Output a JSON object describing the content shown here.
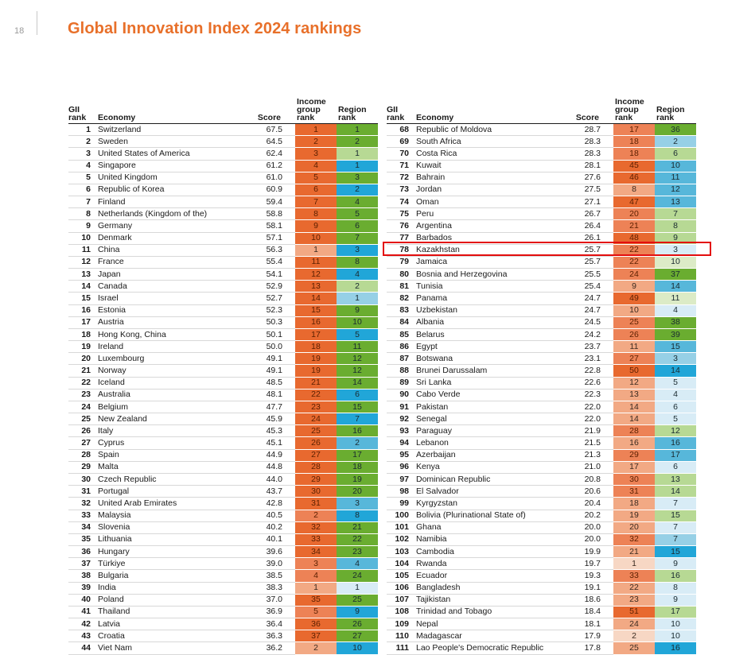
{
  "page_number": "18",
  "title": "Global Innovation Index 2024 rankings",
  "headers": {
    "gii": [
      "GII",
      "rank"
    ],
    "economy": "Economy",
    "score": "Score",
    "income": [
      "Income",
      "group",
      "rank"
    ],
    "region": [
      "Region",
      "rank"
    ]
  },
  "colors": {
    "income": [
      "#f7d7c4",
      "#f2a984",
      "#ed8256",
      "#e8692f"
    ],
    "region": [
      "#d8ecf6",
      "#96d0e6",
      "#57b7da",
      "#21a6d8",
      "#dcebc6",
      "#b7d994",
      "#8fc25c",
      "#6aad30"
    ]
  },
  "left_rows": [
    {
      "rank": "1",
      "economy": "Switzerland",
      "score": "67.5",
      "income": "1",
      "region": "1",
      "ib": 3,
      "rb": 7
    },
    {
      "rank": "2",
      "economy": "Sweden",
      "score": "64.5",
      "income": "2",
      "region": "2",
      "ib": 3,
      "rb": 7
    },
    {
      "rank": "3",
      "economy": "United States of America",
      "score": "62.4",
      "income": "3",
      "region": "1",
      "ib": 3,
      "rb": 5
    },
    {
      "rank": "4",
      "economy": "Singapore",
      "score": "61.2",
      "income": "4",
      "region": "1",
      "ib": 3,
      "rb": 3
    },
    {
      "rank": "5",
      "economy": "United Kingdom",
      "score": "61.0",
      "income": "5",
      "region": "3",
      "ib": 3,
      "rb": 7
    },
    {
      "rank": "6",
      "economy": "Republic of Korea",
      "score": "60.9",
      "income": "6",
      "region": "2",
      "ib": 3,
      "rb": 3
    },
    {
      "rank": "7",
      "economy": "Finland",
      "score": "59.4",
      "income": "7",
      "region": "4",
      "ib": 3,
      "rb": 7
    },
    {
      "rank": "8",
      "economy": "Netherlands (Kingdom of the)",
      "score": "58.8",
      "income": "8",
      "region": "5",
      "ib": 3,
      "rb": 7
    },
    {
      "rank": "9",
      "economy": "Germany",
      "score": "58.1",
      "income": "9",
      "region": "6",
      "ib": 3,
      "rb": 7
    },
    {
      "rank": "10",
      "economy": "Denmark",
      "score": "57.1",
      "income": "10",
      "region": "7",
      "ib": 3,
      "rb": 7
    },
    {
      "rank": "11",
      "economy": "China",
      "score": "56.3",
      "income": "1",
      "region": "3",
      "ib": 1,
      "rb": 3
    },
    {
      "rank": "12",
      "economy": "France",
      "score": "55.4",
      "income": "11",
      "region": "8",
      "ib": 3,
      "rb": 7
    },
    {
      "rank": "13",
      "economy": "Japan",
      "score": "54.1",
      "income": "12",
      "region": "4",
      "ib": 3,
      "rb": 3
    },
    {
      "rank": "14",
      "economy": "Canada",
      "score": "52.9",
      "income": "13",
      "region": "2",
      "ib": 3,
      "rb": 5
    },
    {
      "rank": "15",
      "economy": "Israel",
      "score": "52.7",
      "income": "14",
      "region": "1",
      "ib": 3,
      "rb": 1
    },
    {
      "rank": "16",
      "economy": "Estonia",
      "score": "52.3",
      "income": "15",
      "region": "9",
      "ib": 3,
      "rb": 7
    },
    {
      "rank": "17",
      "economy": "Austria",
      "score": "50.3",
      "income": "16",
      "region": "10",
      "ib": 3,
      "rb": 7
    },
    {
      "rank": "18",
      "economy": "Hong Kong, China",
      "score": "50.1",
      "income": "17",
      "region": "5",
      "ib": 3,
      "rb": 3
    },
    {
      "rank": "19",
      "economy": "Ireland",
      "score": "50.0",
      "income": "18",
      "region": "11",
      "ib": 3,
      "rb": 7
    },
    {
      "rank": "20",
      "economy": "Luxembourg",
      "score": "49.1",
      "income": "19",
      "region": "12",
      "ib": 3,
      "rb": 7
    },
    {
      "rank": "21",
      "economy": "Norway",
      "score": "49.1",
      "income": "19",
      "region": "12",
      "ib": 3,
      "rb": 7
    },
    {
      "rank": "22",
      "economy": "Iceland",
      "score": "48.5",
      "income": "21",
      "region": "14",
      "ib": 3,
      "rb": 7
    },
    {
      "rank": "23",
      "economy": "Australia",
      "score": "48.1",
      "income": "22",
      "region": "6",
      "ib": 3,
      "rb": 3
    },
    {
      "rank": "24",
      "economy": "Belgium",
      "score": "47.7",
      "income": "23",
      "region": "15",
      "ib": 3,
      "rb": 7
    },
    {
      "rank": "25",
      "economy": "New Zealand",
      "score": "45.9",
      "income": "24",
      "region": "7",
      "ib": 3,
      "rb": 3
    },
    {
      "rank": "26",
      "economy": "Italy",
      "score": "45.3",
      "income": "25",
      "region": "16",
      "ib": 3,
      "rb": 7
    },
    {
      "rank": "27",
      "economy": "Cyprus",
      "score": "45.1",
      "income": "26",
      "region": "2",
      "ib": 3,
      "rb": 2
    },
    {
      "rank": "28",
      "economy": "Spain",
      "score": "44.9",
      "income": "27",
      "region": "17",
      "ib": 3,
      "rb": 7
    },
    {
      "rank": "29",
      "economy": "Malta",
      "score": "44.8",
      "income": "28",
      "region": "18",
      "ib": 3,
      "rb": 7
    },
    {
      "rank": "30",
      "economy": "Czech Republic",
      "score": "44.0",
      "income": "29",
      "region": "19",
      "ib": 3,
      "rb": 7
    },
    {
      "rank": "31",
      "economy": "Portugal",
      "score": "43.7",
      "income": "30",
      "region": "20",
      "ib": 3,
      "rb": 7
    },
    {
      "rank": "32",
      "economy": "United Arab Emirates",
      "score": "42.8",
      "income": "31",
      "region": "3",
      "ib": 3,
      "rb": 2
    },
    {
      "rank": "33",
      "economy": "Malaysia",
      "score": "40.5",
      "income": "2",
      "region": "8",
      "ib": 2,
      "rb": 3
    },
    {
      "rank": "34",
      "economy": "Slovenia",
      "score": "40.2",
      "income": "32",
      "region": "21",
      "ib": 3,
      "rb": 7
    },
    {
      "rank": "35",
      "economy": "Lithuania",
      "score": "40.1",
      "income": "33",
      "region": "22",
      "ib": 3,
      "rb": 7
    },
    {
      "rank": "36",
      "economy": "Hungary",
      "score": "39.6",
      "income": "34",
      "region": "23",
      "ib": 3,
      "rb": 7
    },
    {
      "rank": "37",
      "economy": "Türkiye",
      "score": "39.0",
      "income": "3",
      "region": "4",
      "ib": 2,
      "rb": 2
    },
    {
      "rank": "38",
      "economy": "Bulgaria",
      "score": "38.5",
      "income": "4",
      "region": "24",
      "ib": 2,
      "rb": 7
    },
    {
      "rank": "39",
      "economy": "India",
      "score": "38.3",
      "income": "1",
      "region": "1",
      "ib": 1,
      "rb": 0
    },
    {
      "rank": "40",
      "economy": "Poland",
      "score": "37.0",
      "income": "35",
      "region": "25",
      "ib": 3,
      "rb": 7
    },
    {
      "rank": "41",
      "economy": "Thailand",
      "score": "36.9",
      "income": "5",
      "region": "9",
      "ib": 2,
      "rb": 3
    },
    {
      "rank": "42",
      "economy": "Latvia",
      "score": "36.4",
      "income": "36",
      "region": "26",
      "ib": 3,
      "rb": 7
    },
    {
      "rank": "43",
      "economy": "Croatia",
      "score": "36.3",
      "income": "37",
      "region": "27",
      "ib": 3,
      "rb": 7
    },
    {
      "rank": "44",
      "economy": "Viet Nam",
      "score": "36.2",
      "income": "2",
      "region": "10",
      "ib": 1,
      "rb": 3
    }
  ],
  "right_rows": [
    {
      "rank": "68",
      "economy": "Republic of Moldova",
      "score": "28.7",
      "income": "17",
      "region": "36",
      "ib": 2,
      "rb": 7
    },
    {
      "rank": "69",
      "economy": "South Africa",
      "score": "28.3",
      "income": "18",
      "region": "2",
      "ib": 2,
      "rb": 1
    },
    {
      "rank": "70",
      "economy": "Costa Rica",
      "score": "28.3",
      "income": "18",
      "region": "6",
      "ib": 2,
      "rb": 5
    },
    {
      "rank": "71",
      "economy": "Kuwait",
      "score": "28.1",
      "income": "45",
      "region": "10",
      "ib": 3,
      "rb": 2
    },
    {
      "rank": "72",
      "economy": "Bahrain",
      "score": "27.6",
      "income": "46",
      "region": "11",
      "ib": 3,
      "rb": 2
    },
    {
      "rank": "73",
      "economy": "Jordan",
      "score": "27.5",
      "income": "8",
      "region": "12",
      "ib": 1,
      "rb": 2
    },
    {
      "rank": "74",
      "economy": "Oman",
      "score": "27.1",
      "income": "47",
      "region": "13",
      "ib": 3,
      "rb": 2
    },
    {
      "rank": "75",
      "economy": "Peru",
      "score": "26.7",
      "income": "20",
      "region": "7",
      "ib": 2,
      "rb": 5
    },
    {
      "rank": "76",
      "economy": "Argentina",
      "score": "26.4",
      "income": "21",
      "region": "8",
      "ib": 2,
      "rb": 5
    },
    {
      "rank": "77",
      "economy": "Barbados",
      "score": "26.1",
      "income": "48",
      "region": "9",
      "ib": 3,
      "rb": 5
    },
    {
      "rank": "78",
      "economy": "Kazakhstan",
      "score": "25.7",
      "income": "22",
      "region": "3",
      "ib": 2,
      "rb": 0
    },
    {
      "rank": "79",
      "economy": "Jamaica",
      "score": "25.7",
      "income": "22",
      "region": "10",
      "ib": 2,
      "rb": 4
    },
    {
      "rank": "80",
      "economy": "Bosnia and Herzegovina",
      "score": "25.5",
      "income": "24",
      "region": "37",
      "ib": 2,
      "rb": 7
    },
    {
      "rank": "81",
      "economy": "Tunisia",
      "score": "25.4",
      "income": "9",
      "region": "14",
      "ib": 1,
      "rb": 2
    },
    {
      "rank": "82",
      "economy": "Panama",
      "score": "24.7",
      "income": "49",
      "region": "11",
      "ib": 3,
      "rb": 4
    },
    {
      "rank": "83",
      "economy": "Uzbekistan",
      "score": "24.7",
      "income": "10",
      "region": "4",
      "ib": 1,
      "rb": 0
    },
    {
      "rank": "84",
      "economy": "Albania",
      "score": "24.5",
      "income": "25",
      "region": "38",
      "ib": 2,
      "rb": 7
    },
    {
      "rank": "85",
      "economy": "Belarus",
      "score": "24.2",
      "income": "26",
      "region": "39",
      "ib": 2,
      "rb": 7
    },
    {
      "rank": "86",
      "economy": "Egypt",
      "score": "23.7",
      "income": "11",
      "region": "15",
      "ib": 1,
      "rb": 2
    },
    {
      "rank": "87",
      "economy": "Botswana",
      "score": "23.1",
      "income": "27",
      "region": "3",
      "ib": 2,
      "rb": 1
    },
    {
      "rank": "88",
      "economy": "Brunei Darussalam",
      "score": "22.8",
      "income": "50",
      "region": "14",
      "ib": 3,
      "rb": 3
    },
    {
      "rank": "89",
      "economy": "Sri Lanka",
      "score": "22.6",
      "income": "12",
      "region": "5",
      "ib": 1,
      "rb": 0
    },
    {
      "rank": "90",
      "economy": "Cabo Verde",
      "score": "22.3",
      "income": "13",
      "region": "4",
      "ib": 1,
      "rb": 0
    },
    {
      "rank": "91",
      "economy": "Pakistan",
      "score": "22.0",
      "income": "14",
      "region": "6",
      "ib": 1,
      "rb": 0
    },
    {
      "rank": "92",
      "economy": "Senegal",
      "score": "22.0",
      "income": "14",
      "region": "5",
      "ib": 1,
      "rb": 0
    },
    {
      "rank": "93",
      "economy": "Paraguay",
      "score": "21.9",
      "income": "28",
      "region": "12",
      "ib": 2,
      "rb": 5
    },
    {
      "rank": "94",
      "economy": "Lebanon",
      "score": "21.5",
      "income": "16",
      "region": "16",
      "ib": 1,
      "rb": 2
    },
    {
      "rank": "95",
      "economy": "Azerbaijan",
      "score": "21.3",
      "income": "29",
      "region": "17",
      "ib": 2,
      "rb": 2
    },
    {
      "rank": "96",
      "economy": "Kenya",
      "score": "21.0",
      "income": "17",
      "region": "6",
      "ib": 1,
      "rb": 0
    },
    {
      "rank": "97",
      "economy": "Dominican Republic",
      "score": "20.8",
      "income": "30",
      "region": "13",
      "ib": 2,
      "rb": 5
    },
    {
      "rank": "98",
      "economy": "El Salvador",
      "score": "20.6",
      "income": "31",
      "region": "14",
      "ib": 2,
      "rb": 5
    },
    {
      "rank": "99",
      "economy": "Kyrgyzstan",
      "score": "20.4",
      "income": "18",
      "region": "7",
      "ib": 1,
      "rb": 0
    },
    {
      "rank": "100",
      "economy": "Bolivia (Plurinational State of)",
      "score": "20.2",
      "income": "19",
      "region": "15",
      "ib": 1,
      "rb": 5
    },
    {
      "rank": "101",
      "economy": "Ghana",
      "score": "20.0",
      "income": "20",
      "region": "7",
      "ib": 1,
      "rb": 0
    },
    {
      "rank": "102",
      "economy": "Namibia",
      "score": "20.0",
      "income": "32",
      "region": "7",
      "ib": 2,
      "rb": 1
    },
    {
      "rank": "103",
      "economy": "Cambodia",
      "score": "19.9",
      "income": "21",
      "region": "15",
      "ib": 1,
      "rb": 3
    },
    {
      "rank": "104",
      "economy": "Rwanda",
      "score": "19.7",
      "income": "1",
      "region": "9",
      "ib": 0,
      "rb": 0
    },
    {
      "rank": "105",
      "economy": "Ecuador",
      "score": "19.3",
      "income": "33",
      "region": "16",
      "ib": 2,
      "rb": 5
    },
    {
      "rank": "106",
      "economy": "Bangladesh",
      "score": "19.1",
      "income": "22",
      "region": "8",
      "ib": 1,
      "rb": 0
    },
    {
      "rank": "107",
      "economy": "Tajikistan",
      "score": "18.6",
      "income": "23",
      "region": "9",
      "ib": 1,
      "rb": 0
    },
    {
      "rank": "108",
      "economy": "Trinidad and Tobago",
      "score": "18.4",
      "income": "51",
      "region": "17",
      "ib": 3,
      "rb": 5
    },
    {
      "rank": "109",
      "economy": "Nepal",
      "score": "18.1",
      "income": "24",
      "region": "10",
      "ib": 1,
      "rb": 0
    },
    {
      "rank": "110",
      "economy": "Madagascar",
      "score": "17.9",
      "income": "2",
      "region": "10",
      "ib": 0,
      "rb": 0
    },
    {
      "rank": "111",
      "economy": "Lao People's Democratic Republic",
      "score": "17.8",
      "income": "25",
      "region": "16",
      "ib": 1,
      "rb": 3
    }
  ]
}
